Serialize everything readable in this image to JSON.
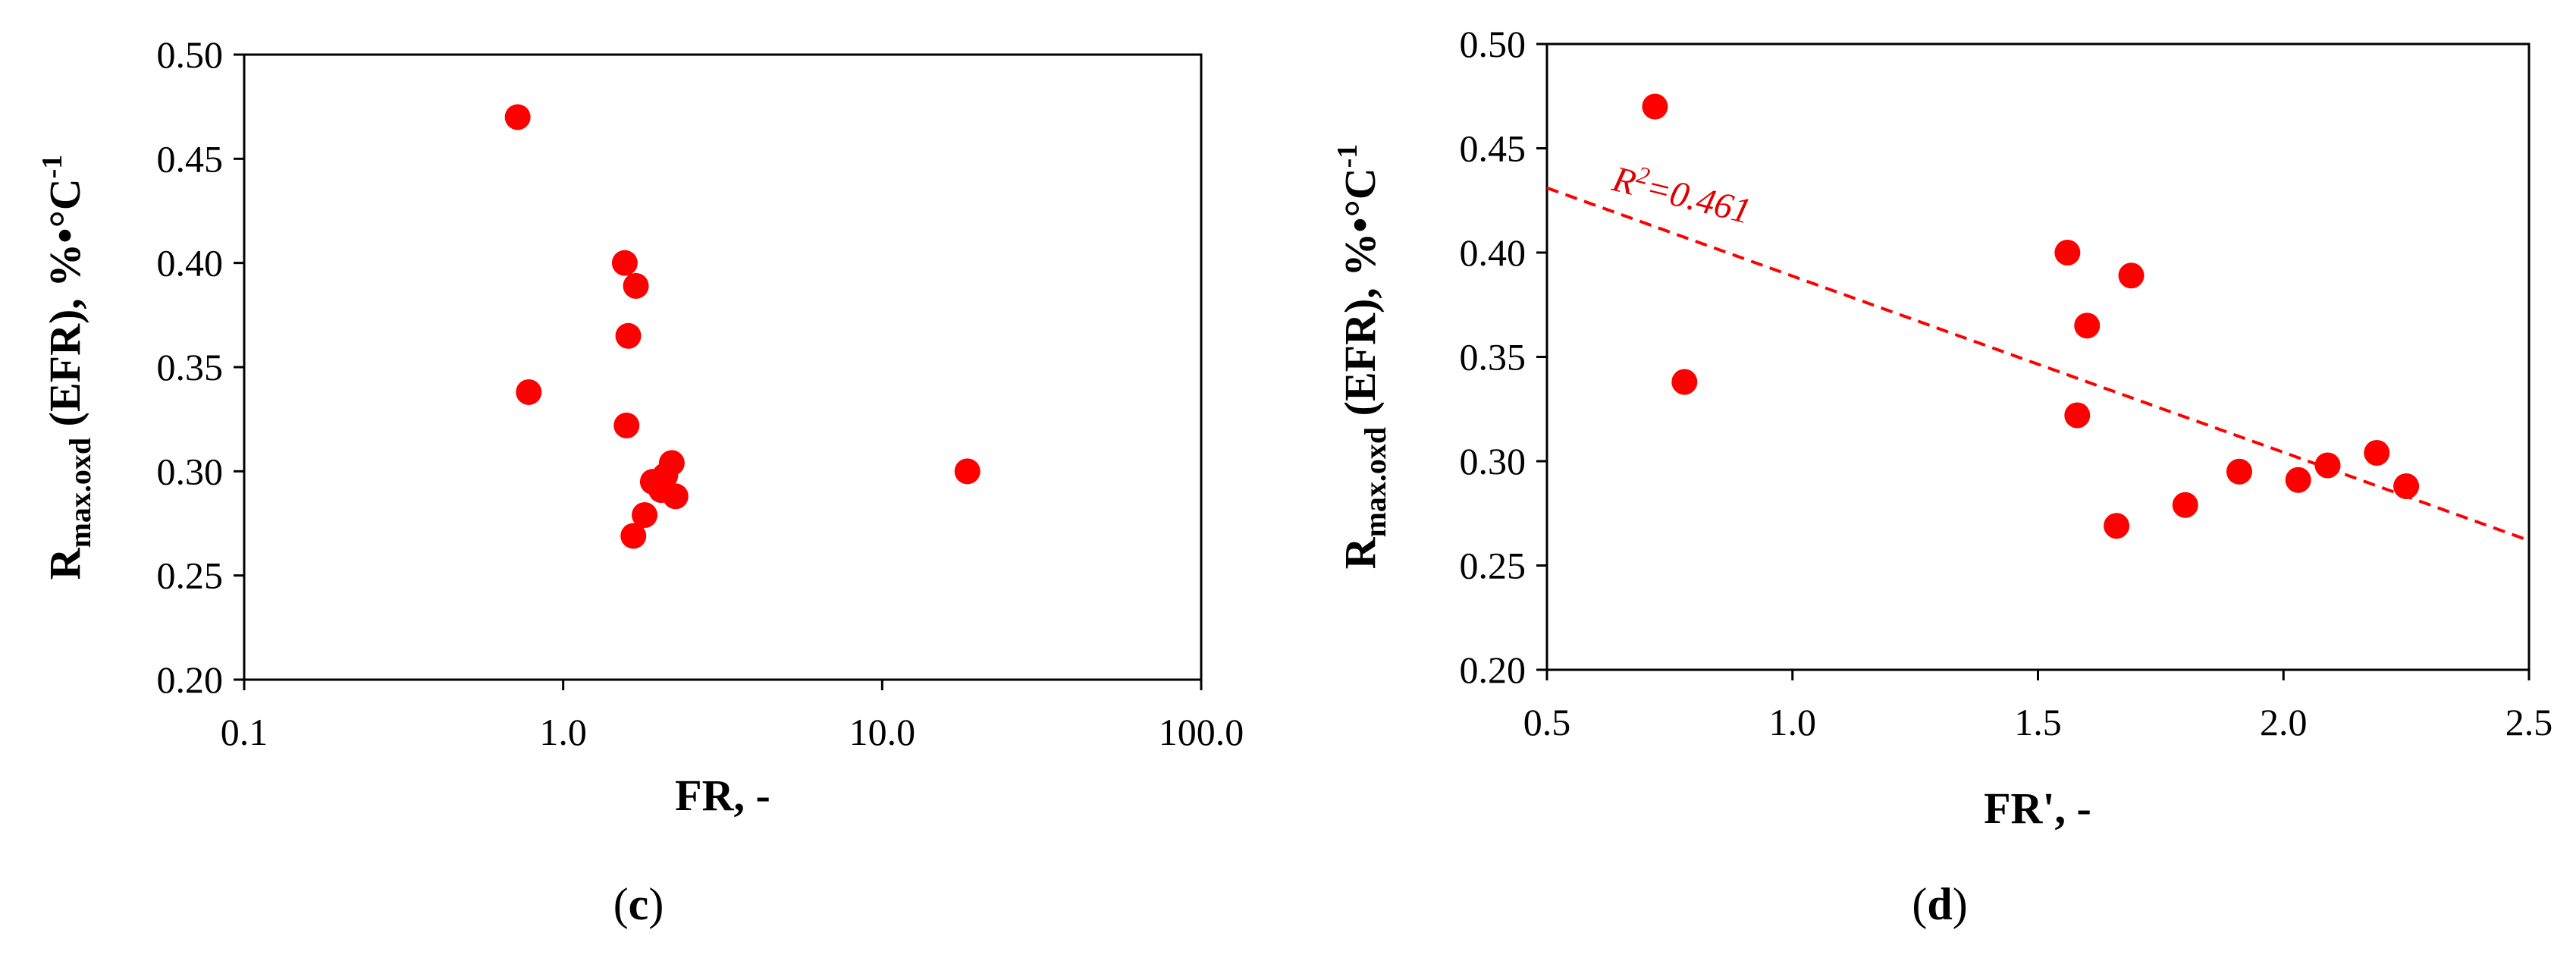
{
  "chart_data": [
    {
      "type": "scatter",
      "panel_label": "(c)",
      "panel_letter": "c",
      "xlabel": "FR, -",
      "ylabel": {
        "main": "R",
        "sub": "max.oxd",
        "rest": " (EFR),  %•°C",
        "sup": "-1"
      },
      "xscale": "log",
      "xlim": [
        0.1,
        100
      ],
      "ylim": [
        0.2,
        0.5
      ],
      "x_ticks": [
        0.1,
        1,
        10,
        100
      ],
      "x_tick_labels": [
        "0.1",
        "1.0",
        "10.0",
        "100.0"
      ],
      "y_ticks": [
        0.2,
        0.25,
        0.3,
        0.35,
        0.4,
        0.45,
        0.5
      ],
      "y_tick_labels": [
        "0.20",
        "0.25",
        "0.30",
        "0.35",
        "0.40",
        "0.45",
        "0.50"
      ],
      "grid": false,
      "marker_color": "#ff0000",
      "points": [
        {
          "x": 0.72,
          "y": 0.47
        },
        {
          "x": 0.78,
          "y": 0.338
        },
        {
          "x": 1.56,
          "y": 0.4
        },
        {
          "x": 1.69,
          "y": 0.389
        },
        {
          "x": 1.6,
          "y": 0.365
        },
        {
          "x": 1.58,
          "y": 0.322
        },
        {
          "x": 2.19,
          "y": 0.304
        },
        {
          "x": 2.09,
          "y": 0.298
        },
        {
          "x": 1.91,
          "y": 0.295
        },
        {
          "x": 2.03,
          "y": 0.291
        },
        {
          "x": 2.25,
          "y": 0.288
        },
        {
          "x": 1.8,
          "y": 0.279
        },
        {
          "x": 1.66,
          "y": 0.269
        },
        {
          "x": 18.5,
          "y": 0.3
        }
      ]
    },
    {
      "type": "scatter",
      "panel_label": "(d)",
      "panel_letter": "d",
      "xlabel": "FR', -",
      "ylabel": {
        "main": "R",
        "sub": "max.oxd",
        "rest": " (EFR),  %•°C",
        "sup": "-1"
      },
      "xscale": "linear",
      "xlim": [
        0.5,
        2.5
      ],
      "ylim": [
        0.2,
        0.5
      ],
      "x_ticks": [
        0.5,
        1.0,
        1.5,
        2.0,
        2.5
      ],
      "x_tick_labels": [
        "0.5",
        "1.0",
        "1.5",
        "2.0",
        "2.5"
      ],
      "y_ticks": [
        0.2,
        0.25,
        0.3,
        0.35,
        0.4,
        0.45,
        0.5
      ],
      "y_tick_labels": [
        "0.20",
        "0.25",
        "0.30",
        "0.35",
        "0.40",
        "0.45",
        "0.50"
      ],
      "grid": false,
      "marker_color": "#ff0000",
      "points": [
        {
          "x": 0.72,
          "y": 0.47
        },
        {
          "x": 0.78,
          "y": 0.338
        },
        {
          "x": 1.56,
          "y": 0.4
        },
        {
          "x": 1.69,
          "y": 0.389
        },
        {
          "x": 1.6,
          "y": 0.365
        },
        {
          "x": 1.58,
          "y": 0.322
        },
        {
          "x": 2.19,
          "y": 0.304
        },
        {
          "x": 2.09,
          "y": 0.298
        },
        {
          "x": 1.91,
          "y": 0.295
        },
        {
          "x": 2.03,
          "y": 0.291
        },
        {
          "x": 2.25,
          "y": 0.288
        },
        {
          "x": 1.8,
          "y": 0.279
        },
        {
          "x": 1.66,
          "y": 0.269
        }
      ],
      "trendline": {
        "style": "dashed",
        "color": "#ff0000",
        "from": {
          "x": 0.5,
          "y": 0.431
        },
        "to": {
          "x": 2.5,
          "y": 0.262
        },
        "label_prefix": "R",
        "label_sup": "2",
        "label_value": "=0.461"
      }
    }
  ]
}
